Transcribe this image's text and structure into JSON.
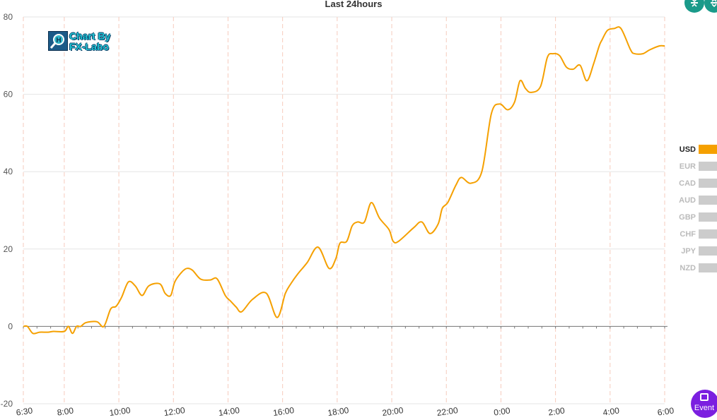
{
  "chart_data": {
    "type": "line",
    "title": "Last 24hours",
    "ylim": [
      -20,
      80
    ],
    "y_ticks": [
      -20,
      0,
      20,
      40,
      60,
      80
    ],
    "x_ticks": [
      "6:30",
      "8:00",
      "10:00",
      "12:00",
      "14:00",
      "16:00",
      "18:00",
      "20:00",
      "22:00",
      "0:00",
      "2:00",
      "4:00",
      "6:00"
    ],
    "x_tick_hours": [
      0,
      1.5,
      3.5,
      5.5,
      7.5,
      9.5,
      11.5,
      13.5,
      15.5,
      17.5,
      19.5,
      21.5,
      23.5
    ],
    "grid": true,
    "legend_position": "right",
    "series": [
      {
        "name": "USD",
        "color": "#f5a000",
        "x": [
          0,
          0.15,
          0.35,
          0.6,
          0.9,
          1.1,
          1.5,
          1.65,
          1.8,
          1.95,
          2.1,
          2.3,
          2.7,
          2.95,
          3.2,
          3.4,
          3.6,
          3.85,
          4.1,
          4.35,
          4.6,
          5.0,
          5.2,
          5.4,
          5.55,
          5.8,
          6.0,
          6.2,
          6.5,
          6.85,
          7.1,
          7.4,
          7.6,
          7.8,
          8.0,
          8.4,
          8.9,
          9.3,
          9.6,
          9.8,
          10.05,
          10.4,
          10.8,
          11.2,
          11.45,
          11.6,
          11.85,
          12.05,
          12.25,
          12.5,
          12.75,
          13.05,
          13.4,
          13.55,
          13.75,
          14.3,
          14.6,
          14.9,
          15.2,
          15.35,
          15.55,
          15.85,
          16.05,
          16.4,
          16.8,
          17.15,
          17.45,
          17.75,
          18.0,
          18.2,
          18.4,
          18.6,
          18.95,
          19.2,
          19.4,
          19.65,
          19.9,
          20.15,
          20.4,
          20.65,
          20.9,
          21.1,
          21.2,
          21.4,
          21.65,
          21.9,
          22.25,
          22.4,
          22.7,
          22.95,
          23.3,
          23.5
        ],
        "values": [
          0,
          0,
          -1.8,
          -1.5,
          -1.5,
          -1.3,
          -1.3,
          0,
          -1.8,
          0,
          0,
          1,
          1.2,
          0,
          4.5,
          5.2,
          7.5,
          11.5,
          10.5,
          8,
          10.5,
          11,
          8.5,
          8,
          11.5,
          14,
          15,
          14.5,
          12.2,
          12,
          12.3,
          8,
          6.5,
          5,
          3.8,
          7,
          8.6,
          2.3,
          8.5,
          11,
          13.5,
          16.5,
          20.5,
          15,
          17.5,
          21.5,
          22,
          26,
          27,
          27,
          32,
          28,
          25,
          22,
          22,
          25.5,
          27,
          24,
          26.5,
          30.5,
          32,
          36.5,
          38.5,
          37,
          40,
          55,
          57.5,
          56,
          58,
          63.5,
          61.5,
          60.5,
          62,
          69.5,
          70.5,
          70,
          67,
          66.5,
          67.5,
          63.5,
          68,
          72.5,
          74,
          76.5,
          77,
          77,
          71.5,
          70.5,
          70.5,
          71.5,
          72.5,
          72.5
        ]
      }
    ]
  },
  "legend": [
    {
      "label": "USD",
      "color": "#f5a000",
      "active": true
    },
    {
      "label": "EUR",
      "color": "#cccccc",
      "active": false
    },
    {
      "label": "CAD",
      "color": "#cccccc",
      "active": false
    },
    {
      "label": "AUD",
      "color": "#cccccc",
      "active": false
    },
    {
      "label": "GBP",
      "color": "#cccccc",
      "active": false
    },
    {
      "label": "CHF",
      "color": "#cccccc",
      "active": false
    },
    {
      "label": "JPY",
      "color": "#cccccc",
      "active": false
    },
    {
      "label": "NZD",
      "color": "#cccccc",
      "active": false
    }
  ],
  "logo": {
    "line1": "Chart By",
    "line2": "FX-Labo"
  },
  "event_button": {
    "label": "Event",
    "icon": "calendar-icon"
  },
  "toolbar": {
    "icons": [
      "compress-icon",
      "expand-icon"
    ]
  }
}
